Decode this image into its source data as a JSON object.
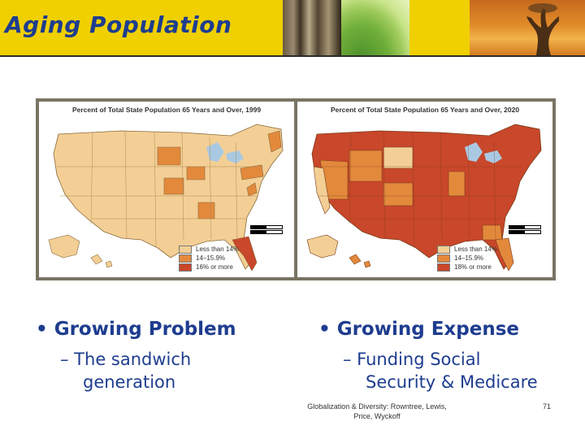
{
  "slide": {
    "title": "Aging Population"
  },
  "maps": {
    "left": {
      "title": "Percent of Total State Population 65 Years and Over, 1999"
    },
    "right": {
      "title": "Percent of Total State Population 65 Years and Over, 2020"
    },
    "legend_left": [
      "Less than 14%",
      "14–15.9%",
      "16% or more"
    ],
    "legend_right": [
      "Less than 14%",
      "14–15.9%",
      "18% or more"
    ],
    "colors": {
      "low": "#f3cf95",
      "mid": "#e3893c",
      "high": "#c9472a",
      "water": "#a9c9e3"
    }
  },
  "bullets": {
    "left": {
      "heading": "• Growing Problem",
      "sub1": "– The sandwich",
      "sub2": "generation"
    },
    "right": {
      "heading": "• Growing Expense",
      "sub1": "– Funding Social",
      "sub2": "Security & Medicare"
    }
  },
  "footer": {
    "line1": "Globalization & Diversity: Rowntree, Lewis,",
    "line2": "Price, Wyckoff",
    "page": "71"
  }
}
